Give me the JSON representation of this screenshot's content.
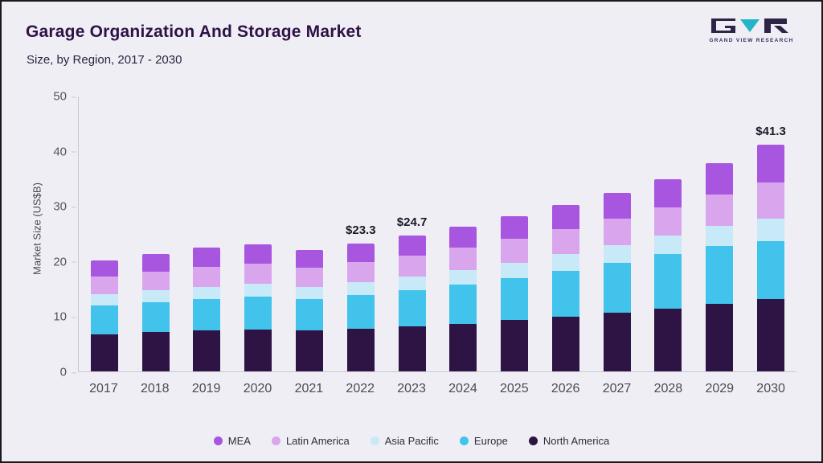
{
  "header": {
    "title": "Garage Organization And Storage Market",
    "subtitle": "Size, by Region, 2017 - 2030",
    "brand": "GRAND VIEW RESEARCH"
  },
  "chart_data": {
    "type": "bar",
    "variant": "stacked",
    "title": "Garage Organization And Storage Market Size, by Region, 2017 - 2030",
    "xlabel": "",
    "ylabel": "Market Size (US$B)",
    "ylim": [
      0,
      50
    ],
    "yticks": [
      0,
      10,
      20,
      30,
      40,
      50
    ],
    "grid": false,
    "categories": [
      "2017",
      "2018",
      "2019",
      "2020",
      "2021",
      "2022",
      "2023",
      "2024",
      "2025",
      "2026",
      "2027",
      "2028",
      "2029",
      "2030"
    ],
    "series": [
      {
        "name": "North America",
        "color": "#2d1445",
        "values": [
          6.8,
          7.2,
          7.5,
          7.6,
          7.4,
          7.8,
          8.2,
          8.7,
          9.3,
          10.0,
          10.7,
          11.4,
          12.3,
          13.2
        ]
      },
      {
        "name": "Europe",
        "color": "#41c3ec",
        "values": [
          5.2,
          5.4,
          5.7,
          6.0,
          5.7,
          6.1,
          6.6,
          7.1,
          7.6,
          8.3,
          9.0,
          9.9,
          10.5,
          10.5
        ]
      },
      {
        "name": "Asia Pacific",
        "color": "#c8e9f8",
        "values": [
          2.0,
          2.1,
          2.2,
          2.3,
          2.2,
          2.3,
          2.4,
          2.6,
          2.8,
          3.0,
          3.2,
          3.4,
          3.7,
          4.1
        ]
      },
      {
        "name": "Latin America",
        "color": "#d9a6ee",
        "values": [
          3.2,
          3.4,
          3.6,
          3.7,
          3.5,
          3.7,
          3.9,
          4.1,
          4.4,
          4.6,
          4.9,
          5.2,
          5.7,
          6.6
        ]
      },
      {
        "name": "MEA",
        "color": "#a855e0",
        "values": [
          3.0,
          3.2,
          3.5,
          3.5,
          3.3,
          3.4,
          3.6,
          3.8,
          4.1,
          4.3,
          4.6,
          5.1,
          5.7,
          6.9
        ]
      }
    ],
    "totals": [
      20.2,
      21.3,
      22.5,
      23.1,
      22.1,
      23.3,
      24.7,
      26.3,
      28.2,
      30.2,
      32.4,
      35.0,
      37.9,
      41.3
    ],
    "annotations": [
      {
        "category": "2022",
        "label": "$23.3"
      },
      {
        "category": "2023",
        "label": "$24.7"
      },
      {
        "category": "2030",
        "label": "$41.3"
      }
    ],
    "legend": {
      "position": "bottom",
      "items": [
        "MEA",
        "Latin America",
        "Asia Pacific",
        "Europe",
        "North America"
      ]
    }
  }
}
